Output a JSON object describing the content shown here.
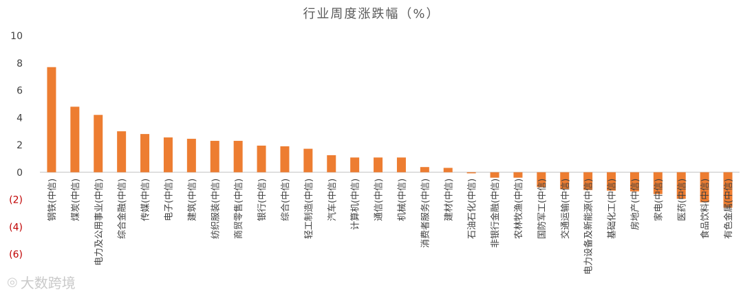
{
  "chart_data": {
    "type": "bar",
    "title": "行业周度涨跌幅（%）",
    "categories": [
      "钢铁(中信)",
      "煤炭(中信)",
      "电力及公用事业(中信)",
      "综合金融(中信)",
      "传媒(中信)",
      "电子(中信)",
      "建筑(中信)",
      "纺织服装(中信)",
      "商贸零售(中信)",
      "银行(中信)",
      "综合(中信)",
      "轻工制造(中信)",
      "汽车(中信)",
      "计算机(中信)",
      "通信(中信)",
      "机械(中信)",
      "消费者服务(中信)",
      "建材(中信)",
      "石油石化(中信)",
      "非银行金融(中信)",
      "农林牧渔(中信)",
      "国防军工(中信)",
      "交通运输(中信)",
      "电力设备及新能源(中信)",
      "基础化工(中信)",
      "房地产(中信)",
      "家电(中信)",
      "医药(中信)",
      "食品饮料(中信)",
      "有色金属(中信)"
    ],
    "values": [
      7.7,
      4.8,
      4.2,
      3.0,
      2.8,
      2.55,
      2.45,
      2.3,
      2.3,
      1.95,
      1.9,
      1.72,
      1.25,
      1.08,
      1.08,
      1.08,
      0.38,
      0.32,
      -0.08,
      -0.4,
      -0.4,
      -1.1,
      -1.25,
      -1.3,
      -1.35,
      -1.4,
      -1.6,
      -1.95,
      -2.2,
      -2.6
    ],
    "ylim": [
      -6,
      10
    ],
    "yticks": [
      10,
      8,
      6,
      4,
      2,
      0,
      -2,
      -4,
      -6
    ],
    "ytick_labels": [
      "10",
      "8",
      "6",
      "4",
      "2",
      "0",
      "(2)",
      "(4)",
      "(6)"
    ],
    "xlabel": "",
    "ylabel": "",
    "grid": false,
    "colors": {
      "bar": "#ED7D31",
      "negative_tick": "#C00000",
      "tick": "#404040",
      "axis": "#bfbfbf"
    }
  },
  "watermark": {
    "text": "大数跨境",
    "glyph": "◎"
  }
}
